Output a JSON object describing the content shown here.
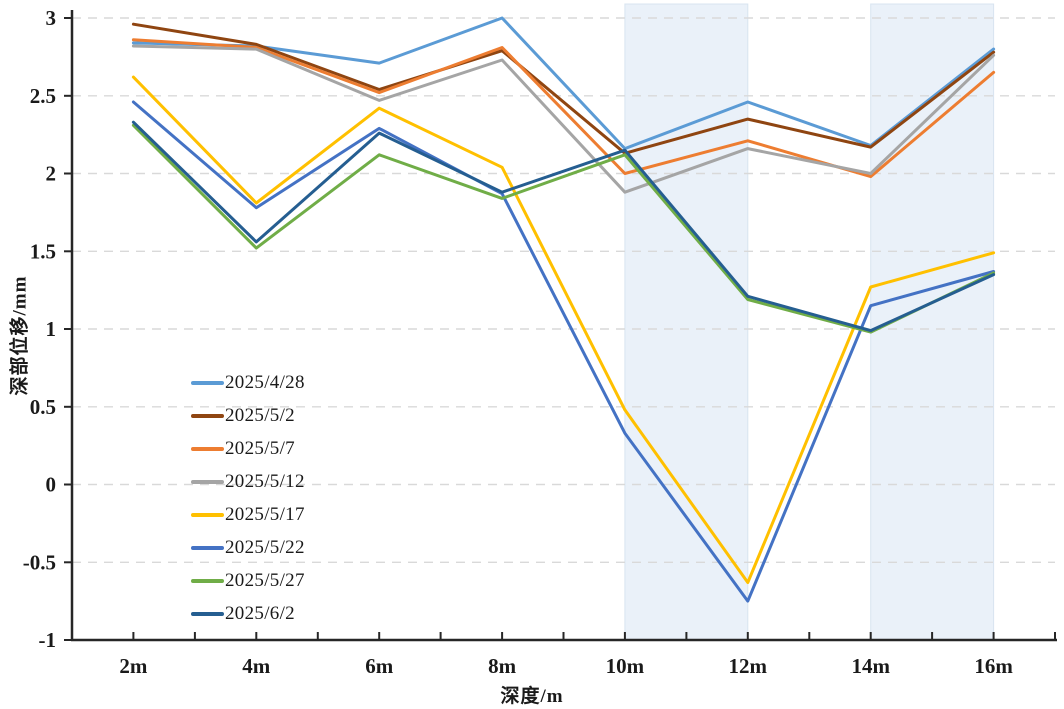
{
  "chart_data": {
    "type": "line",
    "title": "",
    "xlabel": "深度/m",
    "ylabel": "深部位移/mm",
    "categories": [
      "2m",
      "4m",
      "6m",
      "8m",
      "10m",
      "12m",
      "14m",
      "16m"
    ],
    "ylim": [
      -1,
      3
    ],
    "ytick_values": [
      3,
      2.5,
      2,
      1.5,
      1,
      0.5,
      0,
      -0.5,
      -1
    ],
    "ytick_labels": [
      "3",
      "2.5",
      "2",
      "1.5",
      "1",
      "0.5",
      "0",
      "-0.5",
      "-1"
    ],
    "grid": "horizontal-dashed",
    "gridline_color": "#d9d9d9",
    "axis_color": "#262626",
    "legend_position": "inside-left-middle",
    "band_color": "#eaf1f9",
    "band_border_color": "#d8e4f0",
    "highlight_bands": [
      {
        "from": "10m",
        "to": "12m"
      },
      {
        "from": "14m",
        "to": "16m"
      }
    ],
    "series": [
      {
        "name": "2025/4/28",
        "color": "#5B9BD5",
        "values": [
          2.84,
          2.82,
          2.71,
          3.0,
          2.16,
          2.46,
          2.18,
          2.8
        ]
      },
      {
        "name": "2025/5/2",
        "color": "#8F4511",
        "values": [
          2.96,
          2.83,
          2.54,
          2.79,
          2.13,
          2.35,
          2.17,
          2.78
        ]
      },
      {
        "name": "2025/5/7",
        "color": "#ED7D31",
        "values": [
          2.86,
          2.81,
          2.52,
          2.81,
          2.0,
          2.21,
          1.98,
          2.65
        ]
      },
      {
        "name": "2025/5/12",
        "color": "#A5A5A5",
        "values": [
          2.82,
          2.8,
          2.47,
          2.73,
          1.88,
          2.16,
          2.0,
          2.76
        ]
      },
      {
        "name": "2025/5/17",
        "color": "#FFC000",
        "values": [
          2.62,
          1.81,
          2.42,
          2.04,
          0.48,
          -0.63,
          1.27,
          1.49
        ]
      },
      {
        "name": "2025/5/22",
        "color": "#4472C4",
        "values": [
          2.46,
          1.78,
          2.29,
          1.87,
          0.33,
          -0.75,
          1.15,
          1.37
        ]
      },
      {
        "name": "2025/5/27",
        "color": "#70AD47",
        "values": [
          2.31,
          1.52,
          2.12,
          1.84,
          2.12,
          1.19,
          0.98,
          1.36
        ]
      },
      {
        "name": "2025/6/2",
        "color": "#255E91",
        "values": [
          2.33,
          1.56,
          2.26,
          1.88,
          2.15,
          1.21,
          0.99,
          1.35
        ]
      }
    ]
  }
}
